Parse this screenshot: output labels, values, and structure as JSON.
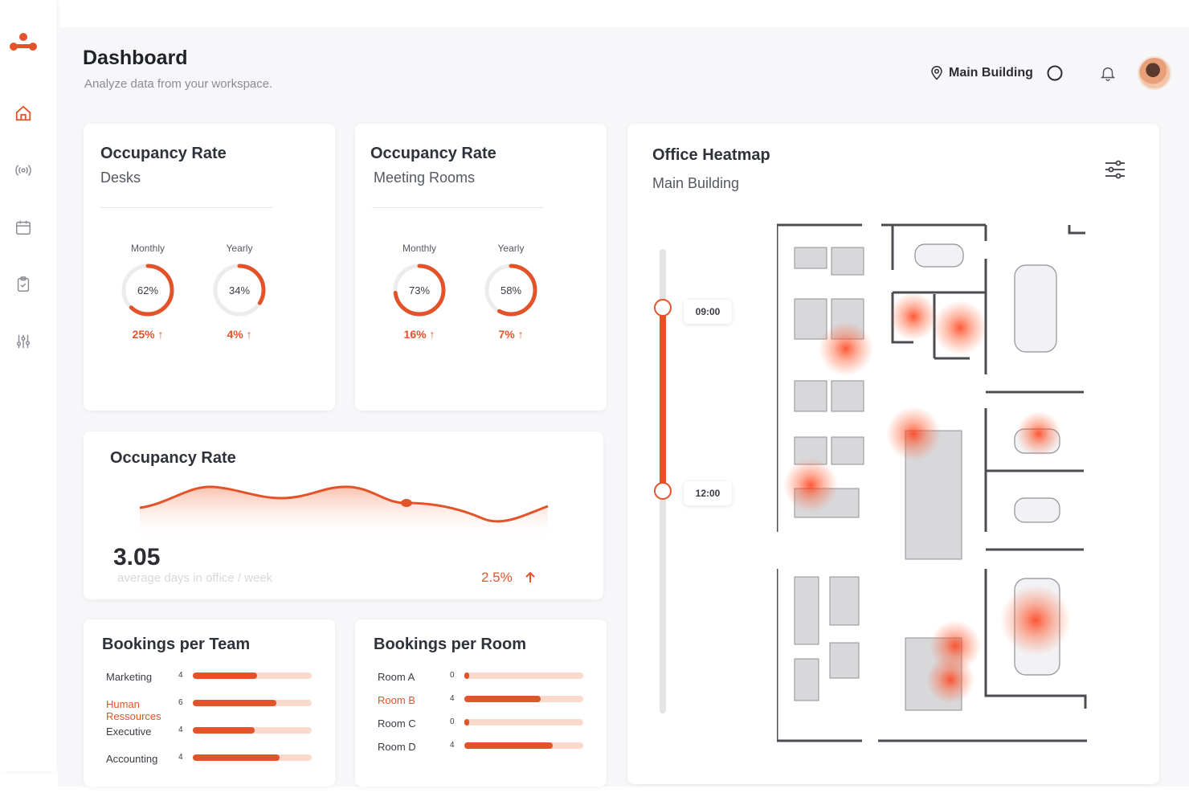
{
  "header": {
    "title": "Dashboard",
    "subtitle": "Analyze data from your workspace.",
    "building": "Main Building"
  },
  "sidebar": {
    "items": [
      {
        "icon": "home-icon"
      },
      {
        "icon": "sensor-icon"
      },
      {
        "icon": "calendar-icon"
      },
      {
        "icon": "clipboard-icon"
      },
      {
        "icon": "sliders-icon"
      }
    ]
  },
  "desks": {
    "title": "Occupancy Rate",
    "subtitle": "Desks",
    "gauges": [
      {
        "period": "Monthly",
        "value": "62%",
        "fraction": 0.62,
        "change": "25%"
      },
      {
        "period": "Yearly",
        "value": "34%",
        "fraction": 0.34,
        "change": "4%"
      }
    ]
  },
  "rooms": {
    "title": "Occupancy Rate",
    "subtitle": "Meeting Rooms",
    "gauges": [
      {
        "period": "Monthly",
        "value": "73%",
        "fraction": 0.73,
        "change": "16%"
      },
      {
        "period": "Yearly",
        "value": "58%",
        "fraction": 0.58,
        "change": "7%"
      }
    ]
  },
  "occupancy": {
    "title": "Occupancy Rate",
    "value": "3.05",
    "caption": "average days in office / week",
    "trend": "2.5%"
  },
  "team_bookings": {
    "title": "Bookings per Team",
    "rows": [
      {
        "name": "Marketing",
        "count": "4",
        "fraction": 0.54,
        "highlight": false
      },
      {
        "name": "Human Ressources",
        "count": "6",
        "fraction": 0.7,
        "highlight": true
      },
      {
        "name": "Executive",
        "count": "4",
        "fraction": 0.52,
        "highlight": false
      },
      {
        "name": "Accounting",
        "count": "4",
        "fraction": 0.73,
        "highlight": false
      }
    ]
  },
  "room_bookings": {
    "title": "Bookings per Room",
    "rows": [
      {
        "name": "Room A",
        "count": "0",
        "fraction": 0.04,
        "highlight": false
      },
      {
        "name": "Room B",
        "count": "4",
        "fraction": 0.64,
        "highlight": true
      },
      {
        "name": "Room C",
        "count": "0",
        "fraction": 0.04,
        "highlight": false
      },
      {
        "name": "Room D",
        "count": "4",
        "fraction": 0.74,
        "highlight": false
      }
    ]
  },
  "heatmap": {
    "title": "Office Heatmap",
    "subtitle": "Main Building",
    "start_time": "09:00",
    "end_time": "12:00"
  },
  "colors": {
    "accent": "#e3532a",
    "accent_light": "#fbd9cd",
    "background": "#f7f7f9"
  }
}
